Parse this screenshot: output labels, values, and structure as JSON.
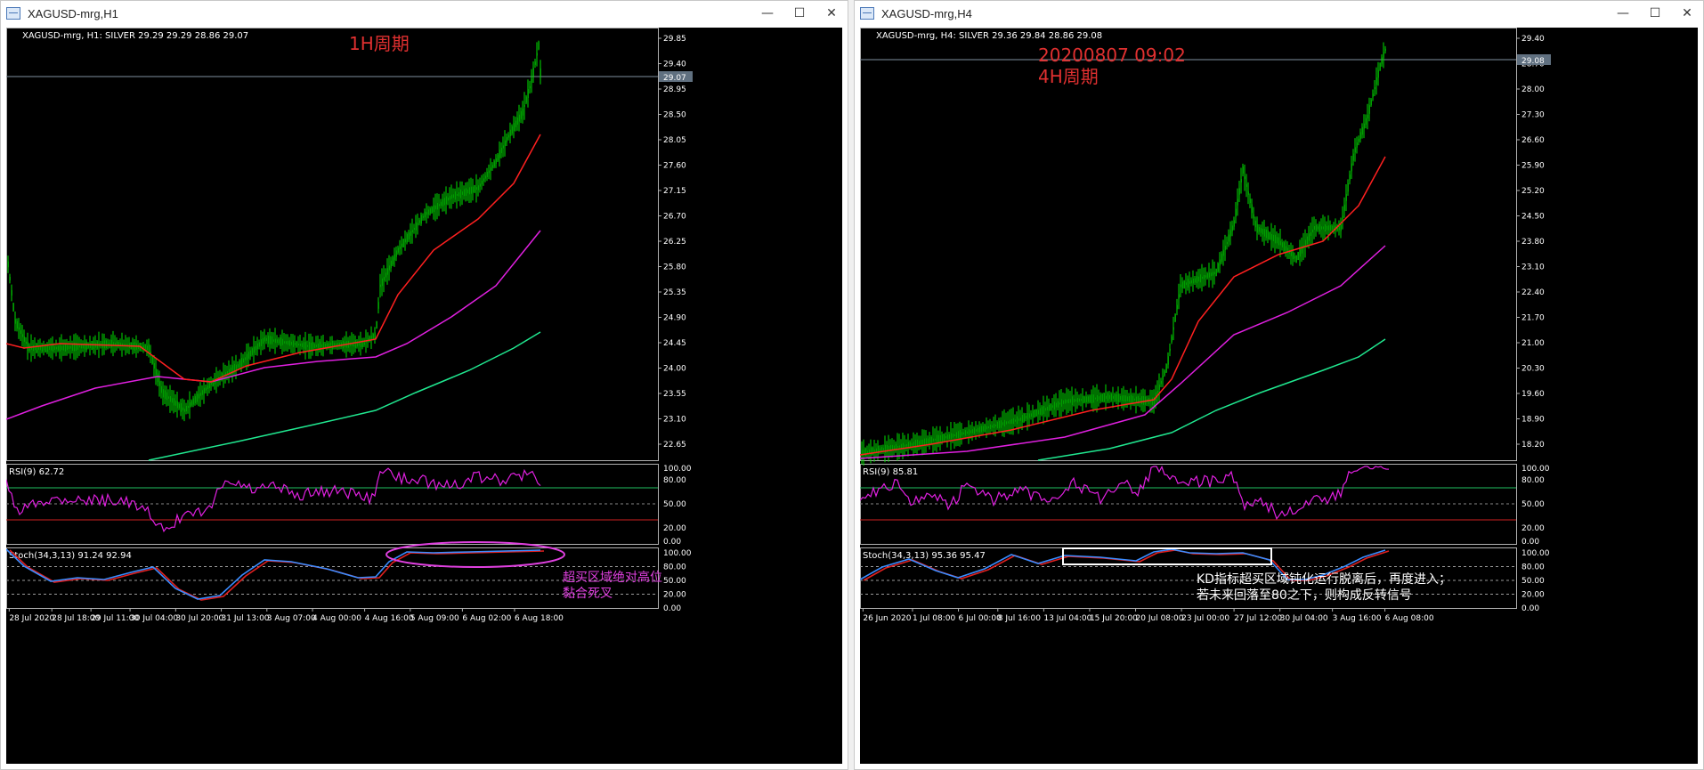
{
  "windows": [
    {
      "id": "h1",
      "title": "XAGUSD-mrg,H1",
      "controls": {
        "minimize": "—",
        "maximize": "☐",
        "close": "✕"
      },
      "info_line": "XAGUSD-mrg, H1:  SILVER  29.29 29.29 28.86 29.07",
      "annotations": [
        "1H周期"
      ],
      "price_ticks": [
        "29.85",
        "29.40",
        "28.95",
        "28.50",
        "28.05",
        "27.60",
        "27.15",
        "26.70",
        "26.25",
        "25.80",
        "25.35",
        "24.90",
        "24.45",
        "24.00",
        "23.55",
        "23.10",
        "22.65"
      ],
      "current_price": "29.07",
      "rsi": {
        "label": "RSI(9) 62.72",
        "ticks": [
          "100.00",
          "80.00",
          "50.00",
          "20.00",
          "0.00"
        ]
      },
      "stoch": {
        "label": "Stoch(34,3,13) 91.24 92.94",
        "ticks": [
          "100.00",
          "80.00",
          "50.00",
          "20.00",
          "0.00"
        ],
        "annotation_lines": [
          "超买区域绝对高位",
          "黏合死叉"
        ]
      },
      "time_ticks": [
        "28 Jul 2020",
        "28 Jul 18:00",
        "29 Jul 11:00",
        "30 Jul 04:00",
        "30 Jul 20:00",
        "31 Jul 13:00",
        "3 Aug 07:00",
        "4 Aug 00:00",
        "4 Aug 16:00",
        "5 Aug 09:00",
        "6 Aug 02:00",
        "6 Aug 18:00"
      ]
    },
    {
      "id": "h4",
      "title": "XAGUSD-mrg,H4",
      "controls": {
        "minimize": "—",
        "maximize": "☐",
        "close": "✕"
      },
      "info_line": "XAGUSD-mrg, H4:  SILVER  29.36 29.84 28.86 29.08",
      "annotations": [
        "20200807 09:02",
        "4H周期"
      ],
      "price_ticks": [
        "29.40",
        "28.70",
        "28.00",
        "27.30",
        "26.60",
        "25.90",
        "25.20",
        "24.50",
        "23.80",
        "23.10",
        "22.40",
        "21.70",
        "21.00",
        "20.30",
        "19.60",
        "18.90",
        "18.20"
      ],
      "current_price": "29.08",
      "rsi": {
        "label": "RSI(9) 85.81",
        "ticks": [
          "100.00",
          "80.00",
          "50.00",
          "20.00",
          "0.00"
        ]
      },
      "stoch": {
        "label": "Stoch(34,3,13) 95.36 95.47",
        "ticks": [
          "100.00",
          "80.00",
          "50.00",
          "20.00",
          "0.00"
        ],
        "annotation_lines": [
          "KD指标超买区域钝化运行脱离后，再度进入；",
          "若未来回落至80之下，则构成反转信号"
        ]
      },
      "time_ticks": [
        "26 Jun 2020",
        "1 Jul 08:00",
        "6 Jul 00:00",
        "8 Jul 16:00",
        "13 Jul 04:00",
        "15 Jul 20:00",
        "20 Jul 08:00",
        "23 Jul 00:00",
        "27 Jul 12:00",
        "30 Jul 04:00",
        "3 Aug 16:00",
        "6 Aug 08:00"
      ]
    }
  ],
  "colors": {
    "candle": "#00e000",
    "ma_fast": "#ff2020",
    "ma_mid": "#e020e0",
    "ma_slow": "#20e890",
    "rsi_line": "#e020e0",
    "stoch_main": "#3a8cff",
    "stoch_signal": "#e02020",
    "grid": "#b0b0b0",
    "ellipse": "#e040e0",
    "rect": "#ffffff"
  }
}
